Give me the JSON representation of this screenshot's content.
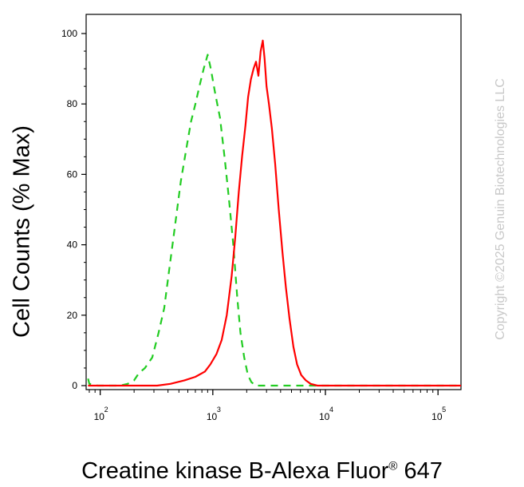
{
  "chart_data": {
    "type": "histogram",
    "title": "",
    "xlabel": "Creatine kinase B-Alexa Fluor",
    "xlabel_sup": "®",
    "xlabel_suffix": " 647",
    "ylabel": "Cell Counts (% Max)",
    "x_scale": "log",
    "xlim": [
      75,
      160000
    ],
    "ylim": [
      0,
      100
    ],
    "y_ticks": [
      0,
      20,
      40,
      60,
      80,
      100
    ],
    "x_ticks": [
      {
        "value": 100,
        "base": "10",
        "exp": "2"
      },
      {
        "value": 1000,
        "base": "10",
        "exp": "3"
      },
      {
        "value": 10000,
        "base": "10",
        "exp": "4"
      },
      {
        "value": 100000,
        "base": "10",
        "exp": "5"
      }
    ],
    "grid": false,
    "series": [
      {
        "style": "dashed",
        "color": "#22cc22",
        "points": [
          [
            78,
            2
          ],
          [
            80,
            0.5
          ],
          [
            95,
            0
          ],
          [
            150,
            0
          ],
          [
            175,
            0.5
          ],
          [
            200,
            1.5
          ],
          [
            220,
            3.5
          ],
          [
            250,
            5
          ],
          [
            290,
            8
          ],
          [
            330,
            15
          ],
          [
            370,
            22
          ],
          [
            410,
            33
          ],
          [
            460,
            45
          ],
          [
            520,
            58
          ],
          [
            580,
            67
          ],
          [
            640,
            75
          ],
          [
            700,
            80
          ],
          [
            760,
            85
          ],
          [
            830,
            90
          ],
          [
            900,
            94
          ],
          [
            960,
            90
          ],
          [
            1050,
            83
          ],
          [
            1160,
            76
          ],
          [
            1280,
            64
          ],
          [
            1400,
            52
          ],
          [
            1520,
            40
          ],
          [
            1650,
            25
          ],
          [
            1760,
            15
          ],
          [
            1900,
            8
          ],
          [
            2050,
            3
          ],
          [
            2200,
            1
          ],
          [
            2400,
            0
          ],
          [
            5000,
            0
          ],
          [
            160000,
            0
          ]
        ]
      },
      {
        "style": "solid",
        "color": "#ff0000",
        "points": [
          [
            78,
            0
          ],
          [
            320,
            0
          ],
          [
            420,
            0.5
          ],
          [
            560,
            1.5
          ],
          [
            700,
            2.5
          ],
          [
            850,
            4
          ],
          [
            950,
            6
          ],
          [
            1080,
            9
          ],
          [
            1200,
            13
          ],
          [
            1330,
            20
          ],
          [
            1470,
            31
          ],
          [
            1580,
            42
          ],
          [
            1700,
            55
          ],
          [
            1820,
            65
          ],
          [
            1950,
            74
          ],
          [
            2060,
            82
          ],
          [
            2180,
            87
          ],
          [
            2300,
            90
          ],
          [
            2420,
            92
          ],
          [
            2540,
            88
          ],
          [
            2660,
            95
          ],
          [
            2780,
            98
          ],
          [
            2880,
            93
          ],
          [
            3000,
            85
          ],
          [
            3150,
            80
          ],
          [
            3350,
            73
          ],
          [
            3580,
            63
          ],
          [
            3850,
            50
          ],
          [
            4150,
            38
          ],
          [
            4450,
            28
          ],
          [
            4800,
            19
          ],
          [
            5200,
            11
          ],
          [
            5600,
            6
          ],
          [
            6100,
            3
          ],
          [
            6700,
            1.5
          ],
          [
            7400,
            0.5
          ],
          [
            8500,
            0
          ],
          [
            160000,
            0
          ]
        ]
      }
    ]
  },
  "watermark": "Copyright ©2025 Genuin Biotechnologies LLC"
}
